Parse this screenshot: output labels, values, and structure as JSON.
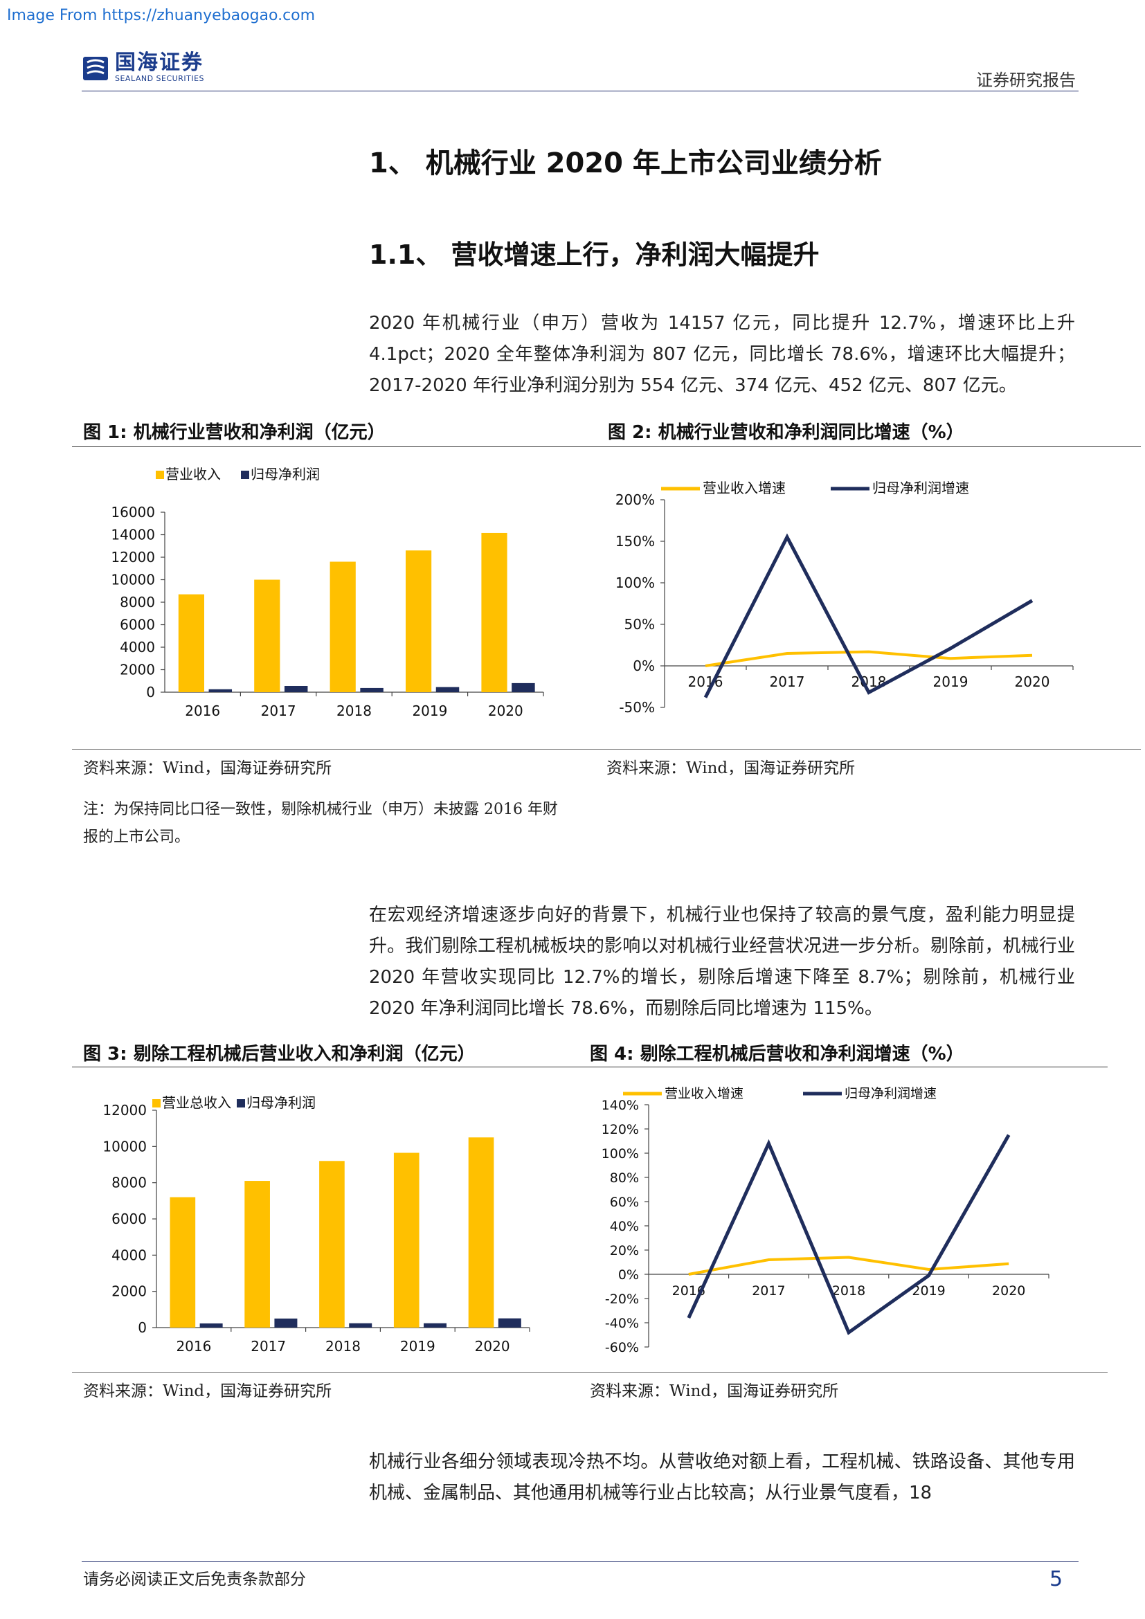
{
  "banner": "Image From https://zhuanyebaogao.com",
  "header": {
    "logo_cn": "国海证券",
    "logo_en": "SEALAND SECURITIES",
    "report_type": "证券研究报告"
  },
  "section": {
    "h1": "1、 机械行业 2020 年上市公司业绩分析",
    "h2": "1.1、 营收增速上行，净利润大幅提升"
  },
  "paragraphs": {
    "p1": "2020 年机械行业（申万）营收为 14157 亿元，同比提升 12.7%，增速环比上升 4.1pct；2020 全年整体净利润为 807 亿元，同比增长 78.6%，增速环比大幅提升；2017-2020 年行业净利润分别为 554 亿元、374 亿元、452 亿元、807 亿元。",
    "p2": "在宏观经济增速逐步向好的背景下，机械行业也保持了较高的景气度，盈利能力明显提升。我们剔除工程机械板块的影响以对机械行业经营状况进一步分析。剔除前，机械行业 2020 年营收实现同比 12.7%的增长，剔除后增速下降至 8.7%；剔除前，机械行业 2020 年净利润同比增长 78.6%，而剔除后同比增速为 115%。",
    "p3": "机械行业各细分领域表现冷热不均。从营收绝对额上看，工程机械、铁路设备、其他专用机械、金属制品、其他通用机械等行业占比较高；从行业景气度看，18"
  },
  "figures": {
    "fig1": {
      "title": "图 1:  机械行业营收和净利润（亿元）",
      "source": "资料来源：Wind，国海证券研究所"
    },
    "fig2": {
      "title": "图 2:  机械行业营收和净利润同比增速（%）",
      "source": "资料来源：Wind，国海证券研究所"
    },
    "fig3": {
      "title": "图 3:  剔除工程机械后营业收入和净利润（亿元）",
      "source": "资料来源：Wind，国海证券研究所"
    },
    "fig4": {
      "title": "图 4:  剔除工程机械后营收和净利润增速（%）",
      "source": "资料来源：Wind，国海证券研究所"
    },
    "note": "注：为保持同比口径一致性，剔除机械行业（申万）未披露 2016 年财报的上市公司。"
  },
  "footer": {
    "disclaimer": "请务必阅读正文后免责条款部分",
    "page": "5"
  },
  "colors": {
    "accent_yellow": "#FFC000",
    "accent_navy": "#1F2D5C",
    "brand": "#1B3C8C"
  },
  "chart_data": [
    {
      "id": "fig1",
      "type": "bar",
      "categories": [
        "2016",
        "2017",
        "2018",
        "2019",
        "2020"
      ],
      "series": [
        {
          "name": "营业收入",
          "values": [
            8700,
            10000,
            11600,
            12600,
            14157
          ],
          "color": "#FFC000"
        },
        {
          "name": "归母净利润",
          "values": [
            260,
            554,
            374,
            452,
            807
          ],
          "color": "#1F2D5C"
        }
      ],
      "yticks": [
        "0",
        "2000",
        "4000",
        "6000",
        "8000",
        "10000",
        "12000",
        "14000",
        "16000"
      ],
      "ylim": [
        0,
        16000
      ],
      "legend": "top",
      "grid": false
    },
    {
      "id": "fig2",
      "type": "line",
      "categories": [
        "2016",
        "2017",
        "2018",
        "2019",
        "2020"
      ],
      "series": [
        {
          "name": "营业收入增速",
          "values": [
            0,
            15,
            17,
            9,
            12.7
          ],
          "color": "#FFC000"
        },
        {
          "name": "归母净利润增速",
          "values": [
            -38,
            155,
            -32,
            21,
            78.6
          ],
          "color": "#1F2D5C"
        }
      ],
      "yticks": [
        "-50%",
        "0%",
        "50%",
        "100%",
        "150%",
        "200%"
      ],
      "ylim": [
        -50,
        200
      ],
      "legend": "top",
      "grid": false
    },
    {
      "id": "fig3",
      "type": "bar",
      "categories": [
        "2016",
        "2017",
        "2018",
        "2019",
        "2020"
      ],
      "series": [
        {
          "name": "营业总收入",
          "values": [
            7200,
            8100,
            9200,
            9650,
            10500
          ],
          "color": "#FFC000"
        },
        {
          "name": "归母净利润",
          "values": [
            230,
            500,
            240,
            240,
            510
          ],
          "color": "#1F2D5C"
        }
      ],
      "yticks": [
        "0",
        "2000",
        "4000",
        "6000",
        "8000",
        "10000",
        "12000"
      ],
      "ylim": [
        0,
        12000
      ],
      "legend": "top",
      "grid": false
    },
    {
      "id": "fig4",
      "type": "line",
      "categories": [
        "2016",
        "2017",
        "2018",
        "2019",
        "2020"
      ],
      "series": [
        {
          "name": "营业收入增速",
          "values": [
            0,
            12,
            14,
            4,
            8.7
          ],
          "color": "#FFC000"
        },
        {
          "name": "归母净利润增速",
          "values": [
            -36,
            108,
            -48,
            -1,
            115
          ],
          "color": "#1F2D5C"
        }
      ],
      "yticks": [
        "-60%",
        "-40%",
        "-20%",
        "0%",
        "20%",
        "40%",
        "60%",
        "80%",
        "100%",
        "120%",
        "140%"
      ],
      "ylim": [
        -60,
        140
      ],
      "legend": "top",
      "grid": false
    }
  ]
}
